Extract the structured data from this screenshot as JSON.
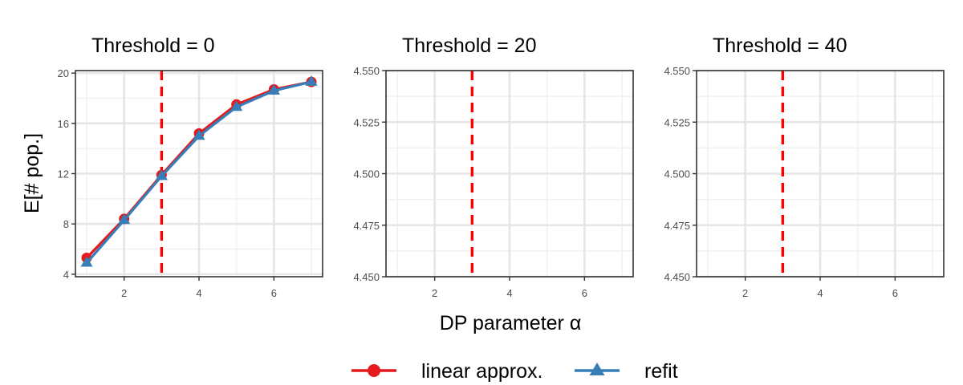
{
  "chart_data": {
    "type": "line",
    "xlabel": "DP parameter α",
    "ylabel": "E[# pop.]",
    "x_ticks": [
      2,
      4,
      6
    ],
    "xlim": [
      0.7,
      7.3
    ],
    "vline": {
      "x": 3,
      "color": "#ff0000",
      "style": "dashed"
    },
    "legend": {
      "placement": "bottom",
      "entries": [
        {
          "label": "linear approx.",
          "color": "#e41a1c",
          "marker": "circle"
        },
        {
          "label": "refit",
          "color": "#377eb8",
          "marker": "triangle"
        }
      ]
    },
    "facets": [
      {
        "title": "Threshold = 0",
        "ylim": [
          3.8,
          20.2
        ],
        "y_ticks": [
          4,
          8,
          12,
          16,
          20
        ],
        "y_tick_labels": [
          "4",
          "8",
          "12",
          "16",
          "20"
        ],
        "series": [
          {
            "name": "linear approx.",
            "x": [
              1,
              2,
              3,
              4,
              5,
              6,
              7
            ],
            "y": [
              5.3,
              8.4,
              11.9,
              15.2,
              17.5,
              18.7,
              19.3
            ]
          },
          {
            "name": "refit",
            "x": [
              1,
              2,
              3,
              4,
              5,
              6,
              7
            ],
            "y": [
              4.9,
              8.3,
              11.8,
              15.0,
              17.3,
              18.6,
              19.3
            ]
          }
        ]
      },
      {
        "title": "Threshold = 20",
        "ylim": [
          4.45,
          4.55
        ],
        "y_ticks": [
          4.45,
          4.475,
          4.5,
          4.525,
          4.55
        ],
        "y_tick_labels": [
          "4.450",
          "4.475",
          "4.500",
          "4.525",
          "4.550"
        ],
        "series": []
      },
      {
        "title": "Threshold = 40",
        "ylim": [
          4.45,
          4.55
        ],
        "y_ticks": [
          4.45,
          4.475,
          4.5,
          4.525,
          4.55
        ],
        "y_tick_labels": [
          "4.450",
          "4.475",
          "4.500",
          "4.525",
          "4.550"
        ],
        "series": []
      }
    ]
  }
}
